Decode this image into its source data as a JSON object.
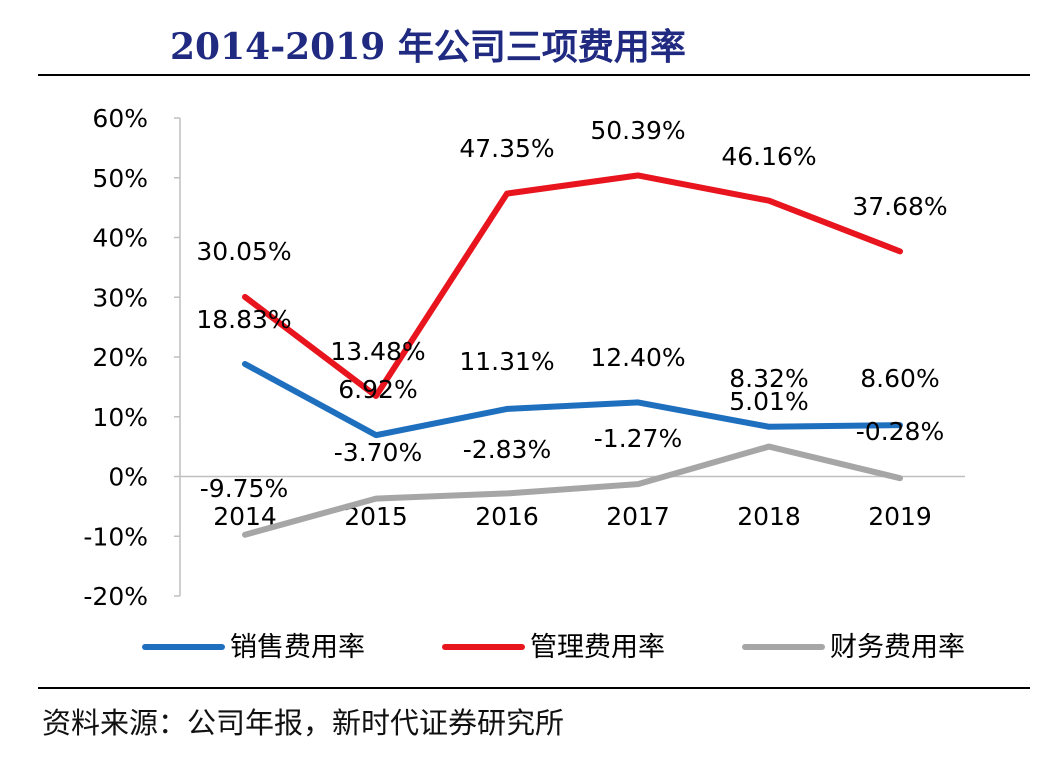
{
  "header": {
    "title": "2014-2019 年公司三项费用率"
  },
  "footer": {
    "source": "资料来源：公司年报，新时代证券研究所"
  },
  "chart_data": {
    "type": "line",
    "title": "2014-2019 年公司三项费用率",
    "categories": [
      "2014",
      "2015",
      "2016",
      "2017",
      "2018",
      "2019"
    ],
    "y_ticks": [
      "60%",
      "50%",
      "40%",
      "30%",
      "20%",
      "10%",
      "0%",
      "-10%",
      "-20%"
    ],
    "ylim": [
      -20,
      60
    ],
    "grid": false,
    "legend_position": "bottom",
    "series": [
      {
        "name": "销售费用率",
        "color": "#1f6fbf",
        "values": [
          18.83,
          6.92,
          11.31,
          12.4,
          8.32,
          8.6
        ],
        "labels": [
          "18.83%",
          "6.92%",
          "11.31%",
          "12.40%",
          "8.32%",
          "8.60%"
        ]
      },
      {
        "name": "管理费用率",
        "color": "#e8141e",
        "values": [
          30.05,
          13.48,
          47.35,
          50.39,
          46.16,
          37.68
        ],
        "labels": [
          "30.05%",
          "13.48%",
          "47.35%",
          "50.39%",
          "46.16%",
          "37.68%"
        ]
      },
      {
        "name": "财务费用率",
        "color": "#a6a6a6",
        "values": [
          -9.75,
          -3.7,
          -2.83,
          -1.27,
          5.01,
          -0.28
        ],
        "labels": [
          "-9.75%",
          "-3.70%",
          "-2.83%",
          "-1.27%",
          "5.01%",
          "-0.28%"
        ]
      }
    ]
  }
}
